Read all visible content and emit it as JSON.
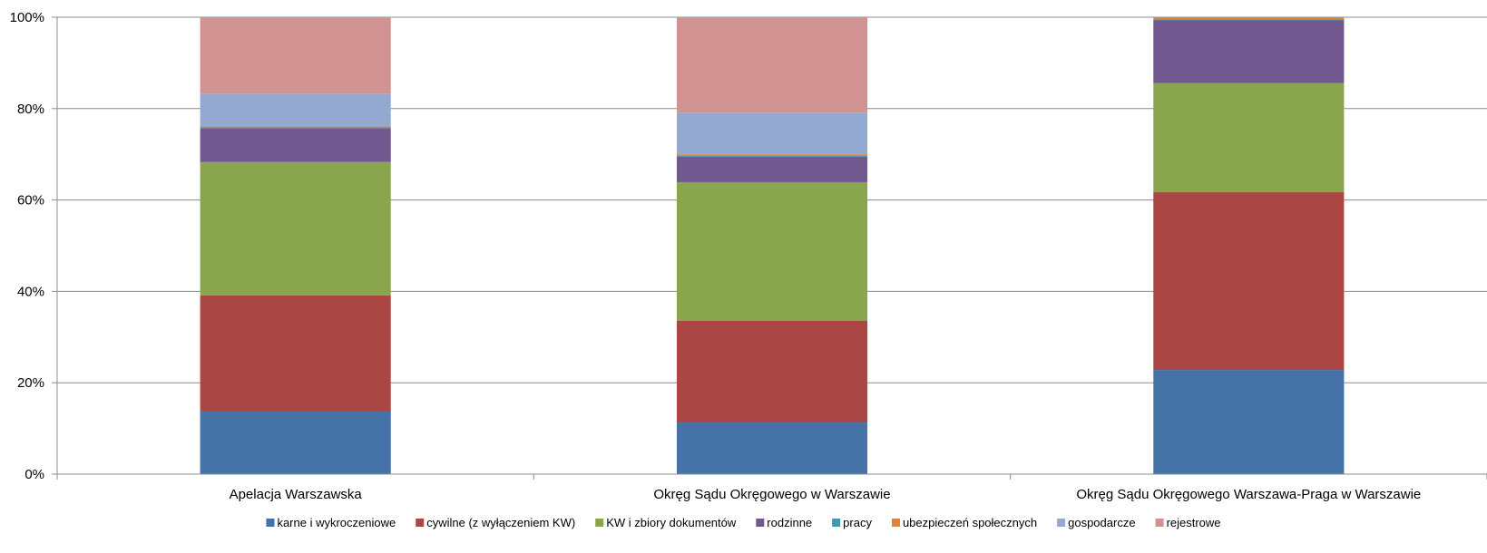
{
  "chart_data": {
    "type": "bar",
    "stacked": "percent",
    "categories": [
      "Apelacja Warszawska",
      "Okręg Sądu Okręgowego w Warszawie",
      "Okręg Sądu Okręgowego Warszawa-Praga w Warszawie"
    ],
    "ylim": [
      0,
      100
    ],
    "yticks": [
      "0%",
      "20%",
      "40%",
      "60%",
      "80%",
      "100%"
    ],
    "grid": true,
    "legend_position": "bottom",
    "series": [
      {
        "name": "karne i wykroczeniowe",
        "color": "#4572A7",
        "values": [
          13.7,
          11.3,
          22.8
        ]
      },
      {
        "name": "cywilne (z wyłączeniem KW)",
        "color": "#AA4643",
        "values": [
          25.4,
          22.3,
          38.9
        ]
      },
      {
        "name": "KW i zbiory dokumentów",
        "color": "#89A54E",
        "values": [
          29.2,
          30.3,
          23.9
        ]
      },
      {
        "name": "rodzinne",
        "color": "#71588F",
        "values": [
          7.3,
          5.6,
          13.7
        ]
      },
      {
        "name": "pracy",
        "color": "#4198AF",
        "values": [
          0.3,
          0.3,
          0.2
        ]
      },
      {
        "name": "ubezpieczeń społecznych",
        "color": "#DB843D",
        "values": [
          0.2,
          0.2,
          0.5
        ]
      },
      {
        "name": "gospodarcze",
        "color": "#93A9CF",
        "values": [
          7.2,
          9.1,
          0.0
        ]
      },
      {
        "name": "rejestrowe",
        "color": "#D19392",
        "values": [
          16.7,
          20.9,
          0.0
        ]
      }
    ]
  }
}
